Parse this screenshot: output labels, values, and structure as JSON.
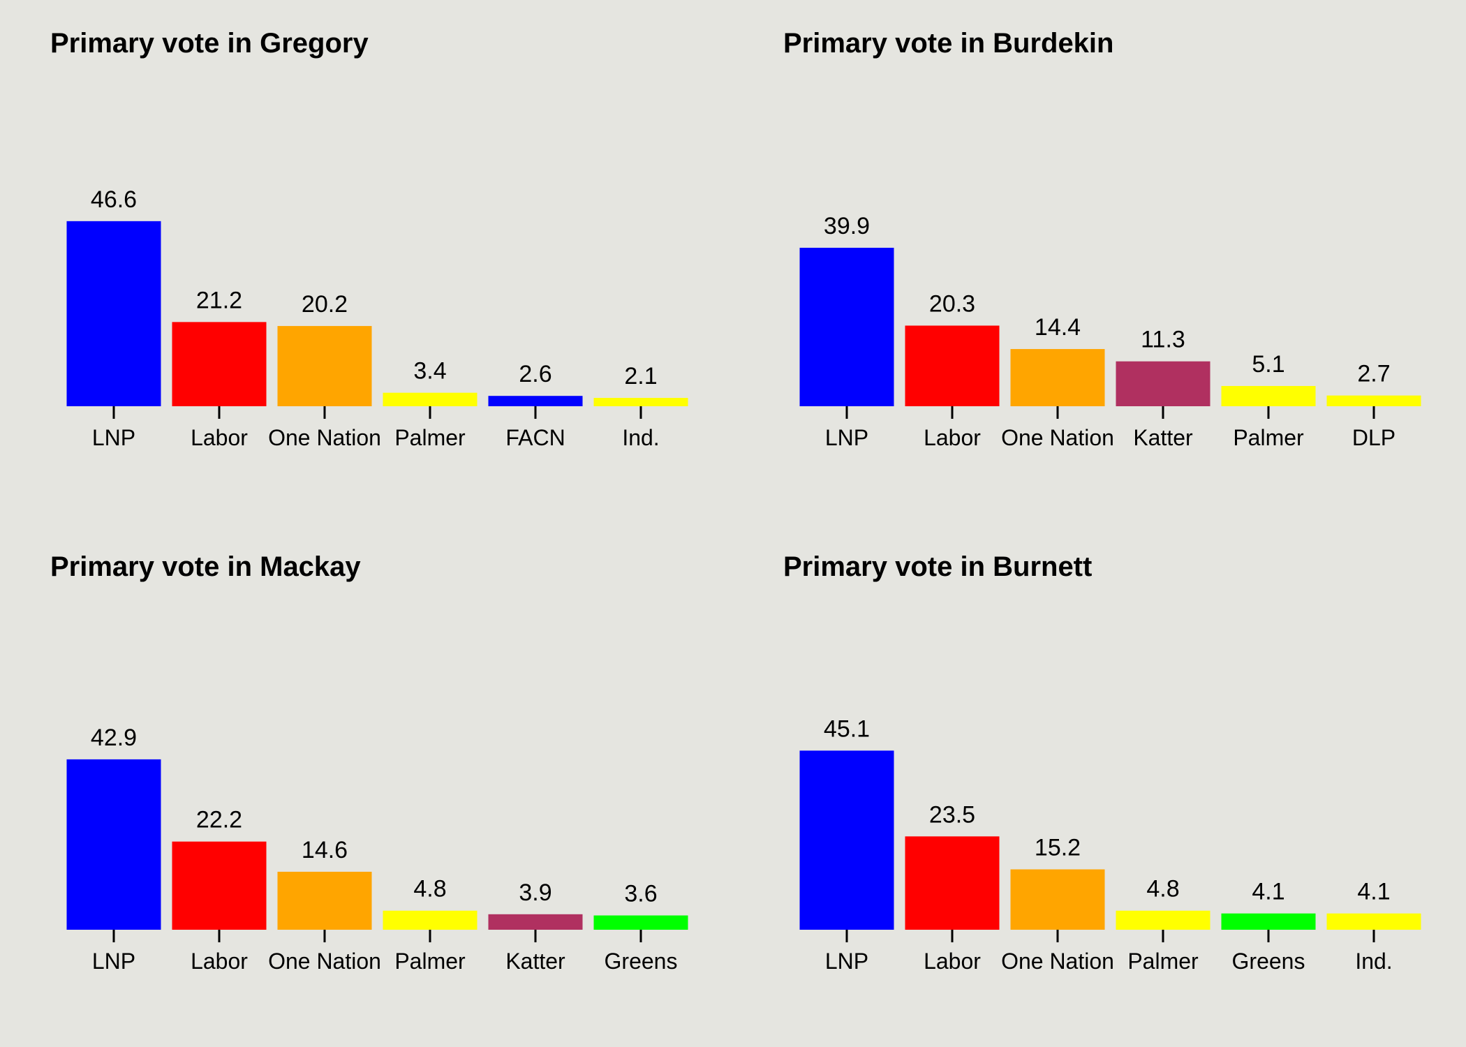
{
  "chart_data": [
    {
      "type": "bar",
      "title": "Primary vote in Gregory",
      "categories": [
        "LNP",
        "Labor",
        "One Nation",
        "Palmer",
        "FACN",
        "Ind."
      ],
      "values": [
        46.6,
        21.2,
        20.2,
        3.4,
        2.6,
        2.1
      ],
      "data_labels": [
        "46.6",
        "21.2",
        "20.2",
        "3.4",
        "2.6",
        "2.1"
      ],
      "colors": [
        "#0000ff",
        "#ff0000",
        "#ffa500",
        "#ffff00",
        "#0000ff",
        "#ffff00"
      ],
      "xlabel": "",
      "ylabel": "",
      "ylim": [
        0,
        60
      ],
      "grid": false
    },
    {
      "type": "bar",
      "title": "Primary vote in Burdekin",
      "categories": [
        "LNP",
        "Labor",
        "One Nation",
        "Katter",
        "Palmer",
        "DLP"
      ],
      "values": [
        39.9,
        20.3,
        14.4,
        11.3,
        5.1,
        2.7
      ],
      "data_labels": [
        "39.9",
        "20.3",
        "14.4",
        "11.3",
        "5.1",
        "2.7"
      ],
      "colors": [
        "#0000ff",
        "#ff0000",
        "#ffa500",
        "#b03060",
        "#ffff00",
        "#ffff00"
      ],
      "xlabel": "",
      "ylabel": "",
      "ylim": [
        0,
        60
      ],
      "grid": false
    },
    {
      "type": "bar",
      "title": "Primary vote in Mackay",
      "categories": [
        "LNP",
        "Labor",
        "One Nation",
        "Palmer",
        "Katter",
        "Greens"
      ],
      "values": [
        42.9,
        22.2,
        14.6,
        4.8,
        3.9,
        3.6
      ],
      "data_labels": [
        "42.9",
        "22.2",
        "14.6",
        "4.8",
        "3.9",
        "3.6"
      ],
      "colors": [
        "#0000ff",
        "#ff0000",
        "#ffa500",
        "#ffff00",
        "#b03060",
        "#00ff00"
      ],
      "xlabel": "",
      "ylabel": "",
      "ylim": [
        0,
        60
      ],
      "grid": false
    },
    {
      "type": "bar",
      "title": "Primary vote in Burnett",
      "categories": [
        "LNP",
        "Labor",
        "One Nation",
        "Palmer",
        "Greens",
        "Ind."
      ],
      "values": [
        45.1,
        23.5,
        15.2,
        4.8,
        4.1,
        4.1
      ],
      "data_labels": [
        "45.1",
        "23.5",
        "15.2",
        "4.8",
        "4.1",
        "4.1"
      ],
      "colors": [
        "#0000ff",
        "#ff0000",
        "#ffa500",
        "#ffff00",
        "#00ff00",
        "#ffff00"
      ],
      "xlabel": "",
      "ylabel": "",
      "ylim": [
        0,
        60
      ],
      "grid": false
    }
  ]
}
